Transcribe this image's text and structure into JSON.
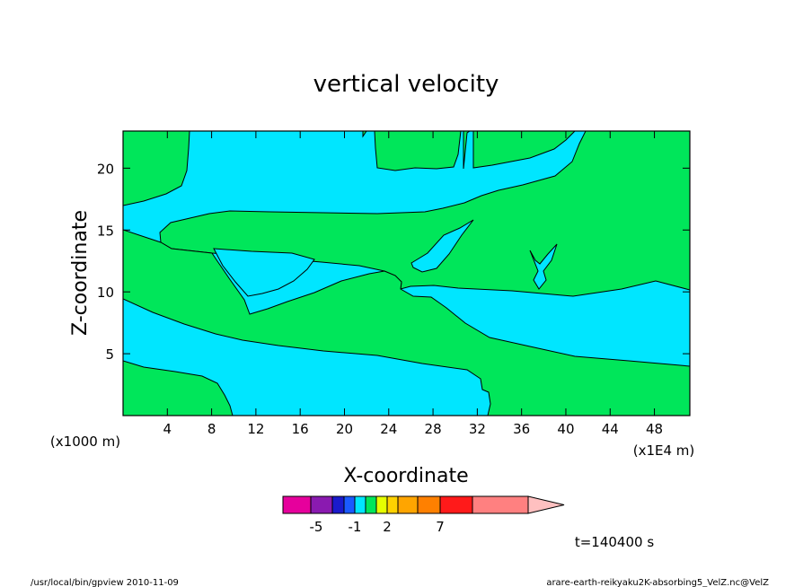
{
  "chart_data": {
    "type": "heatmap",
    "title": "vertical velocity",
    "xlabel": "X-coordinate",
    "ylabel": "Z-coordinate",
    "x_unit_note": "(x1E4 m)",
    "y_unit_note": "(x1000 m)",
    "xlim": [
      0,
      51.2
    ],
    "ylim": [
      0,
      23
    ],
    "x_ticks": [
      "4",
      "8",
      "12",
      "16",
      "20",
      "24",
      "28",
      "32",
      "36",
      "40",
      "44",
      "48"
    ],
    "y_ticks": [
      "5",
      "10",
      "15",
      "20"
    ],
    "field_colors": {
      "positive": "#00e65a",
      "negative": "#00e6ff"
    },
    "colorbar": {
      "colors": [
        "#e6009c",
        "#8a1ab0",
        "#1a1acc",
        "#1a5aff",
        "#00e6ff",
        "#00e65a",
        "#e6ff00",
        "#ffd200",
        "#ffa500",
        "#ff8000",
        "#ff1a1a",
        "#ff8080",
        "#ffc0c0"
      ],
      "labels": [
        "-5",
        "-1",
        "2",
        "7"
      ]
    },
    "time_label": "t=140400 s"
  },
  "footer": {
    "left": "/usr/local/bin/gpview  2010-11-09",
    "right": "arare-earth-reikyaku2K-absorbing5_VelZ.nc@VelZ"
  }
}
